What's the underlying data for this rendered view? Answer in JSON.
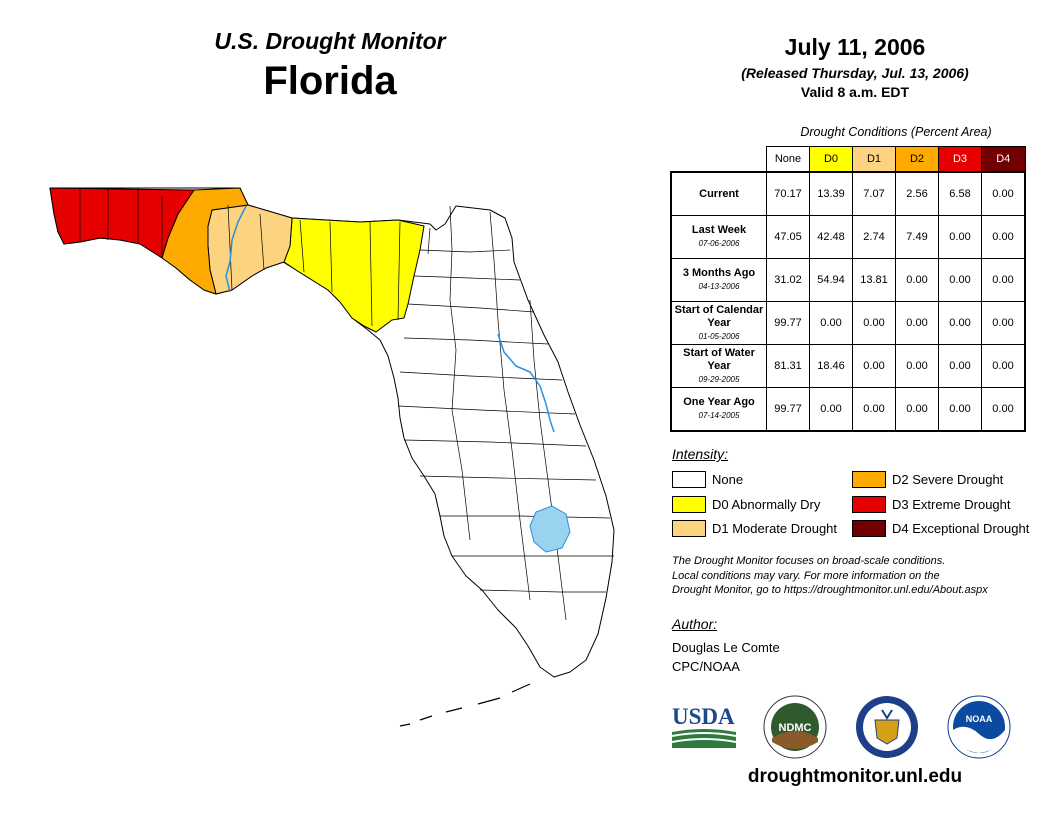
{
  "header": {
    "subtitle": "U.S. Drought Monitor",
    "state": "Florida",
    "date": "July 11, 2006",
    "released": "(Released Thursday, Jul. 13, 2006)",
    "valid": "Valid 8 a.m. EDT"
  },
  "table": {
    "caption": "Drought Conditions (Percent Area)",
    "columns": [
      "None",
      "D0",
      "D1",
      "D2",
      "D3",
      "D4"
    ],
    "column_colors": [
      "#ffffff",
      "#ffff00",
      "#fcd37f",
      "#ffaa00",
      "#e60000",
      "#730000"
    ],
    "column_text_colors": [
      "#000000",
      "#000000",
      "#000000",
      "#000000",
      "#ffffff",
      "#ffffff"
    ],
    "rows": [
      {
        "label": "Current",
        "date": "",
        "values": [
          "70.17",
          "13.39",
          "7.07",
          "2.56",
          "6.58",
          "0.00"
        ]
      },
      {
        "label": "Last Week",
        "date": "07-06-2006",
        "values": [
          "47.05",
          "42.48",
          "2.74",
          "7.49",
          "0.00",
          "0.00"
        ]
      },
      {
        "label": "3 Months Ago",
        "date": "04-13-2006",
        "values": [
          "31.02",
          "54.94",
          "13.81",
          "0.00",
          "0.00",
          "0.00"
        ]
      },
      {
        "label": "Start of Calendar Year",
        "date": "01-05-2006",
        "values": [
          "99.77",
          "0.00",
          "0.00",
          "0.00",
          "0.00",
          "0.00"
        ]
      },
      {
        "label": "Start of Water Year",
        "date": "09-29-2005",
        "values": [
          "81.31",
          "18.46",
          "0.00",
          "0.00",
          "0.00",
          "0.00"
        ]
      },
      {
        "label": "One Year Ago",
        "date": "07-14-2005",
        "values": [
          "99.77",
          "0.00",
          "0.00",
          "0.00",
          "0.00",
          "0.00"
        ]
      }
    ]
  },
  "legend": {
    "title": "Intensity:",
    "items": [
      {
        "label": "None",
        "color": "#ffffff"
      },
      {
        "label": "D0 Abnormally Dry",
        "color": "#ffff00"
      },
      {
        "label": "D1 Moderate Drought",
        "color": "#fcd37f"
      },
      {
        "label": "D2 Severe Drought",
        "color": "#ffaa00"
      },
      {
        "label": "D3 Extreme Drought",
        "color": "#e60000"
      },
      {
        "label": "D4 Exceptional Drought",
        "color": "#730000"
      }
    ]
  },
  "note": {
    "line1": "The Drought Monitor focuses on broad-scale conditions.",
    "line2": "Local conditions may vary. For more information on the",
    "line3": "Drought Monitor, go to https://droughtmonitor.unl.edu/About.aspx"
  },
  "author": {
    "title": "Author:",
    "name": "Douglas Le Comte",
    "org": "CPC/NOAA"
  },
  "logos": {
    "usda": "USDA",
    "ndmc": "NDMC",
    "noaa": "NOAA"
  },
  "website": "droughtmonitor.unl.edu",
  "map_colors": {
    "none": "#ffffff",
    "d0": "#ffff00",
    "d1": "#fcd37f",
    "d2": "#ffaa00",
    "d3": "#e60000",
    "water": "#9ad3ee",
    "river": "#2b8ee0"
  }
}
